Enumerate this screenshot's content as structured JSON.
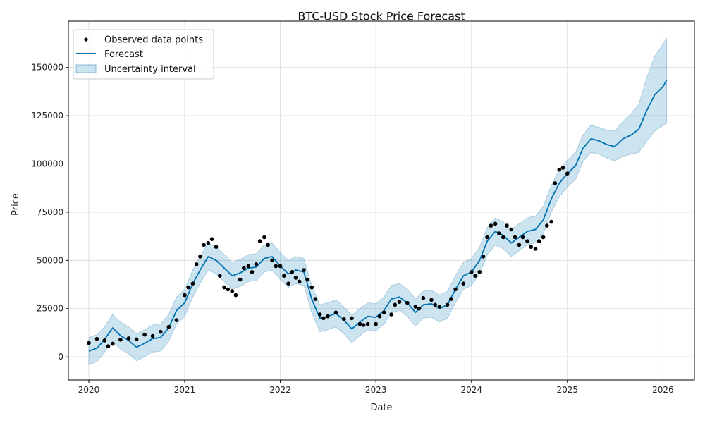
{
  "chart_data": {
    "type": "line",
    "title": "BTC-USD Stock Price Forecast",
    "xlabel": "Date",
    "ylabel": "Price",
    "xlim": [
      "2019-10-15",
      "2026-05-01"
    ],
    "ylim": [
      -12000,
      174000
    ],
    "x_ticks": [
      "2020",
      "2021",
      "2022",
      "2023",
      "2024",
      "2025",
      "2026"
    ],
    "y_ticks": [
      0,
      25000,
      50000,
      75000,
      100000,
      125000,
      150000
    ],
    "grid": true,
    "legend_position": "top-left",
    "legend": [
      {
        "label": "Observed data points",
        "kind": "marker"
      },
      {
        "label": "Forecast",
        "kind": "line"
      },
      {
        "label": "Uncertainty interval",
        "kind": "patch"
      }
    ],
    "colors": {
      "observed": "#000000",
      "forecast": "#0072B2",
      "interval_fill": "#0072B2",
      "interval_edge": "#6fa7cc"
    },
    "series": [
      {
        "name": "Forecast",
        "x": [
          "2020-01-01",
          "2020-02-01",
          "2020-03-01",
          "2020-04-01",
          "2020-05-01",
          "2020-06-01",
          "2020-07-01",
          "2020-08-01",
          "2020-09-01",
          "2020-10-01",
          "2020-11-01",
          "2020-12-01",
          "2021-01-01",
          "2021-02-01",
          "2021-03-01",
          "2021-04-01",
          "2021-05-01",
          "2021-06-01",
          "2021-07-01",
          "2021-08-01",
          "2021-09-01",
          "2021-10-01",
          "2021-11-01",
          "2021-12-01",
          "2022-01-01",
          "2022-02-01",
          "2022-03-01",
          "2022-04-01",
          "2022-05-01",
          "2022-06-01",
          "2022-07-01",
          "2022-08-01",
          "2022-09-01",
          "2022-10-01",
          "2022-11-01",
          "2022-12-01",
          "2023-01-01",
          "2023-02-01",
          "2023-03-01",
          "2023-04-01",
          "2023-05-01",
          "2023-06-01",
          "2023-07-01",
          "2023-08-01",
          "2023-09-01",
          "2023-10-01",
          "2023-11-01",
          "2023-12-01",
          "2024-01-01",
          "2024-02-01",
          "2024-03-01",
          "2024-04-01",
          "2024-05-01",
          "2024-06-01",
          "2024-07-01",
          "2024-08-01",
          "2024-09-01",
          "2024-10-01",
          "2024-11-01",
          "2024-12-01",
          "2025-01-01",
          "2025-02-01",
          "2025-03-01",
          "2025-04-01",
          "2025-05-01",
          "2025-06-01",
          "2025-07-01",
          "2025-08-01",
          "2025-09-01",
          "2025-10-01",
          "2025-11-01",
          "2025-12-01",
          "2026-01-01",
          "2026-01-15"
        ],
        "values": [
          3000,
          4500,
          9000,
          15000,
          11000,
          8500,
          5000,
          7000,
          9500,
          10000,
          15000,
          24000,
          28000,
          38000,
          45000,
          52000,
          50000,
          46000,
          42000,
          43500,
          46000,
          46500,
          51000,
          52000,
          47000,
          43000,
          45000,
          44000,
          30000,
          20000,
          21000,
          22500,
          19000,
          14500,
          18000,
          21000,
          20500,
          24000,
          30000,
          31000,
          28000,
          23000,
          27000,
          27500,
          25000,
          27000,
          35000,
          42000,
          44000,
          50000,
          60000,
          65000,
          63000,
          59000,
          62000,
          65000,
          66000,
          71000,
          82000,
          90000,
          95000,
          99000,
          108000,
          113000,
          112000,
          110000,
          109000,
          113000,
          115000,
          118000,
          128000,
          136000,
          140000,
          143500
        ],
        "lower": [
          -4000,
          -2500,
          2500,
          8000,
          4000,
          1500,
          -2000,
          0,
          2500,
          3000,
          8000,
          17000,
          21000,
          31000,
          38000,
          45000,
          43000,
          39000,
          35000,
          36500,
          39000,
          39500,
          44000,
          45000,
          40000,
          36000,
          38000,
          37000,
          23000,
          13000,
          14000,
          15500,
          12000,
          7500,
          11000,
          14000,
          13500,
          17000,
          23000,
          24000,
          21000,
          16000,
          20000,
          20500,
          18000,
          20000,
          28000,
          35000,
          37000,
          43000,
          53000,
          58000,
          56000,
          52000,
          55000,
          58000,
          59000,
          64000,
          75000,
          83000,
          88000,
          92000,
          101000,
          106000,
          105000,
          103000,
          101500,
          104000,
          105000,
          106000,
          112000,
          117000,
          120000,
          121000
        ],
        "upper": [
          10000,
          11500,
          15500,
          22000,
          18000,
          15500,
          12000,
          14000,
          16500,
          17000,
          22000,
          31000,
          35000,
          45000,
          52000,
          59000,
          57000,
          53000,
          49000,
          50500,
          53000,
          53500,
          58000,
          59000,
          54000,
          50000,
          52000,
          51000,
          37000,
          27000,
          28000,
          29500,
          26000,
          21500,
          25000,
          28000,
          27500,
          31000,
          37000,
          38000,
          35000,
          30000,
          34000,
          34500,
          32000,
          34000,
          42000,
          49000,
          51000,
          57000,
          67000,
          72000,
          70000,
          66000,
          69000,
          72000,
          73000,
          78000,
          89000,
          97000,
          102000,
          106000,
          115000,
          120000,
          119000,
          117500,
          117000,
          122000,
          126000,
          131000,
          145000,
          156000,
          162000,
          165000
        ]
      },
      {
        "name": "Observed data points",
        "x": [
          "2020-01-01",
          "2020-02-01",
          "2020-03-01",
          "2020-03-15",
          "2020-04-01",
          "2020-05-01",
          "2020-06-01",
          "2020-07-01",
          "2020-08-01",
          "2020-09-01",
          "2020-10-01",
          "2020-11-01",
          "2020-12-01",
          "2021-01-01",
          "2021-01-15",
          "2021-02-01",
          "2021-02-15",
          "2021-03-01",
          "2021-03-15",
          "2021-04-01",
          "2021-04-15",
          "2021-05-01",
          "2021-05-15",
          "2021-06-01",
          "2021-06-15",
          "2021-07-01",
          "2021-07-15",
          "2021-08-01",
          "2021-08-15",
          "2021-09-01",
          "2021-09-15",
          "2021-10-01",
          "2021-10-15",
          "2021-11-01",
          "2021-11-15",
          "2021-12-01",
          "2021-12-15",
          "2022-01-01",
          "2022-01-15",
          "2022-02-01",
          "2022-02-15",
          "2022-03-01",
          "2022-03-15",
          "2022-04-01",
          "2022-04-15",
          "2022-05-01",
          "2022-05-15",
          "2022-06-01",
          "2022-06-15",
          "2022-07-01",
          "2022-08-01",
          "2022-09-01",
          "2022-10-01",
          "2022-11-01",
          "2022-11-15",
          "2022-12-01",
          "2023-01-01",
          "2023-01-15",
          "2023-02-01",
          "2023-03-01",
          "2023-03-15",
          "2023-04-01",
          "2023-05-01",
          "2023-06-01",
          "2023-06-15",
          "2023-07-01",
          "2023-08-01",
          "2023-08-15",
          "2023-09-01",
          "2023-10-01",
          "2023-10-15",
          "2023-11-01",
          "2023-12-01",
          "2024-01-01",
          "2024-01-15",
          "2024-02-01",
          "2024-02-15",
          "2024-03-01",
          "2024-03-15",
          "2024-04-01",
          "2024-04-15",
          "2024-05-01",
          "2024-05-15",
          "2024-06-01",
          "2024-06-15",
          "2024-07-01",
          "2024-07-15",
          "2024-08-01",
          "2024-08-15",
          "2024-09-01",
          "2024-09-15",
          "2024-10-01",
          "2024-10-15",
          "2024-11-01",
          "2024-11-15",
          "2024-12-01",
          "2024-12-15",
          "2025-01-01"
        ],
        "values": [
          7200,
          9300,
          8500,
          5500,
          6800,
          8900,
          9600,
          9100,
          11500,
          10800,
          13000,
          15500,
          19000,
          32000,
          36000,
          38000,
          48000,
          52000,
          58000,
          59000,
          61000,
          57000,
          42000,
          36000,
          35000,
          34000,
          32000,
          40000,
          46000,
          47000,
          44000,
          48000,
          60000,
          62000,
          58000,
          50000,
          47000,
          47000,
          42000,
          38000,
          44000,
          41000,
          39000,
          45000,
          40000,
          36000,
          30000,
          22000,
          20000,
          21000,
          23000,
          19500,
          20000,
          17000,
          16500,
          17000,
          17000,
          21000,
          23000,
          22000,
          27000,
          28500,
          28000,
          26000,
          25000,
          30500,
          29500,
          27000,
          26000,
          27000,
          30000,
          35000,
          38000,
          44000,
          42000,
          44000,
          52000,
          62000,
          68000,
          69000,
          64000,
          62000,
          68000,
          66000,
          62000,
          58000,
          62000,
          60000,
          57000,
          56000,
          60000,
          62000,
          68000,
          70000,
          90000,
          97000,
          98000,
          95000
        ]
      }
    ]
  }
}
